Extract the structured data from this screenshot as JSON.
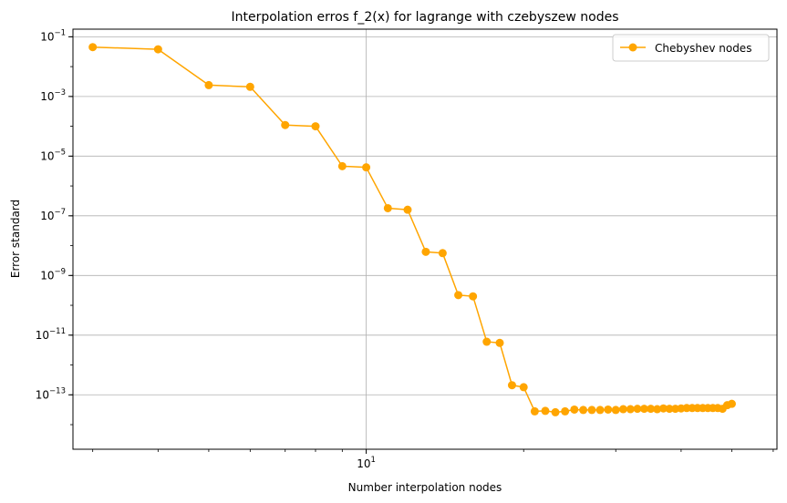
{
  "chart_data": {
    "type": "line",
    "title": "Interpolation erros f_2(x) for lagrange with czebyszew nodes",
    "xlabel": "Number interpolation nodes",
    "ylabel": "Error standard",
    "xscale": "log",
    "yscale": "log",
    "xlim": [
      2.75,
      61
    ],
    "ylim": [
      1.5e-15,
      0.18
    ],
    "grid": true,
    "legend_position": "top-right",
    "x_major_ticks": [
      {
        "value": 10,
        "label": "10",
        "exp": "1"
      }
    ],
    "y_ticks": [
      {
        "value": 0.1,
        "exp": "−1"
      },
      {
        "value": 0.001,
        "exp": "−3"
      },
      {
        "value": 1e-05,
        "exp": "−5"
      },
      {
        "value": 1e-07,
        "exp": "−7"
      },
      {
        "value": 1e-09,
        "exp": "−9"
      },
      {
        "value": 1e-11,
        "exp": "−11"
      },
      {
        "value": 1e-13,
        "exp": "−13"
      }
    ],
    "series": [
      {
        "name": "Chebyshev nodes",
        "color": "#ffa500",
        "marker": "circle",
        "x": [
          3,
          4,
          5,
          6,
          7,
          8,
          9,
          10,
          11,
          12,
          13,
          14,
          15,
          16,
          17,
          18,
          19,
          20,
          21,
          22,
          23,
          24,
          25,
          26,
          27,
          28,
          29,
          30,
          31,
          32,
          33,
          34,
          35,
          36,
          37,
          38,
          39,
          40,
          41,
          42,
          43,
          44,
          45,
          46,
          47,
          48,
          49,
          50
        ],
        "y": [
          0.045,
          0.038,
          0.0024,
          0.0021,
          0.00011,
          0.0001,
          4.6e-06,
          4.2e-06,
          1.8e-07,
          1.6e-07,
          6.2e-09,
          5.6e-09,
          2.2e-10,
          2e-10,
          6e-12,
          5.5e-12,
          2.1e-13,
          1.8e-13,
          2.8e-14,
          2.9e-14,
          2.6e-14,
          2.8e-14,
          3.2e-14,
          3.1e-14,
          3.1e-14,
          3.1e-14,
          3.2e-14,
          3.1e-14,
          3.3e-14,
          3.3e-14,
          3.4e-14,
          3.4e-14,
          3.4e-14,
          3.3e-14,
          3.5e-14,
          3.4e-14,
          3.4e-14,
          3.5e-14,
          3.6e-14,
          3.6e-14,
          3.6e-14,
          3.6e-14,
          3.6e-14,
          3.6e-14,
          3.6e-14,
          3.4e-14,
          4.5e-14,
          5e-14
        ]
      }
    ]
  }
}
